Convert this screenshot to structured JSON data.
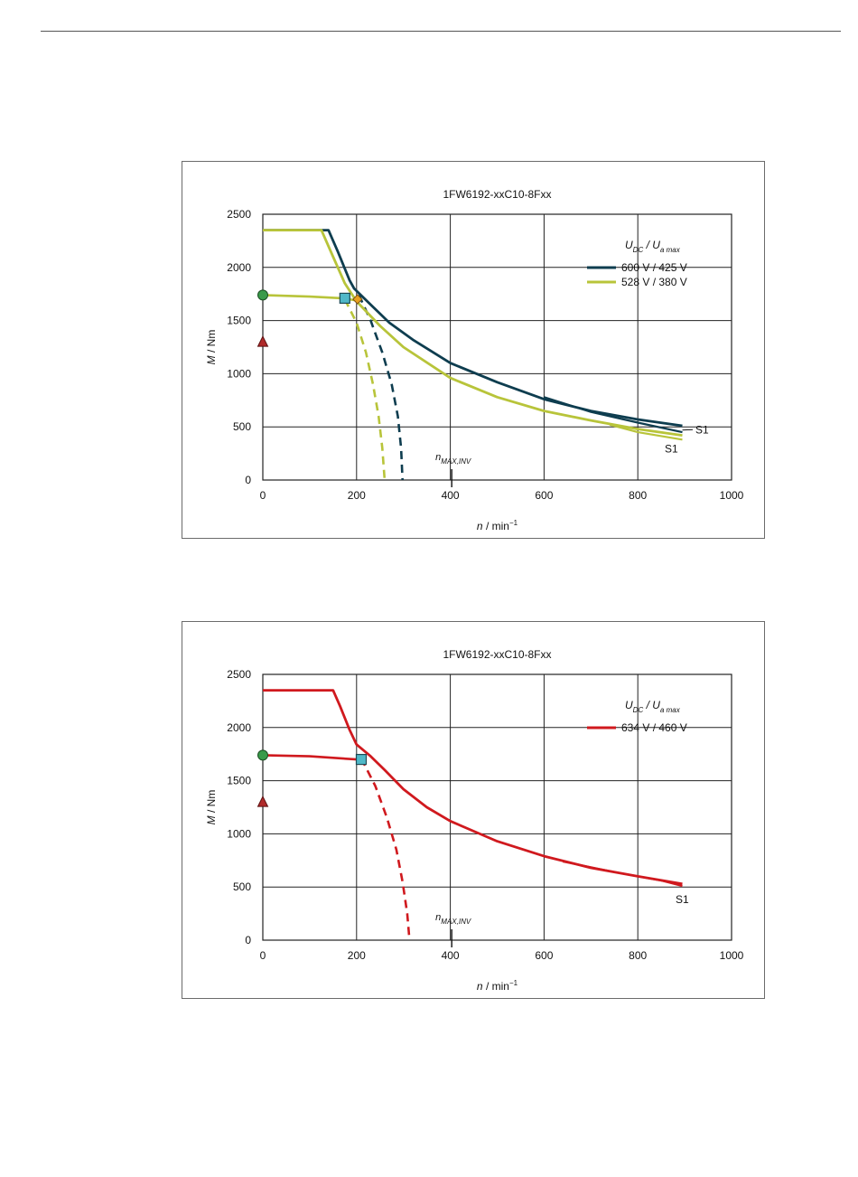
{
  "chart_data": [
    {
      "type": "line",
      "title": "1FW6192-xxC10-8Fxx",
      "xlabel": {
        "var": "n",
        "unit": " / min",
        "sup": "−1"
      },
      "ylabel": {
        "var": "M",
        "unit": " / Nm"
      },
      "xlim": [
        0,
        1000
      ],
      "ylim": [
        0,
        2500
      ],
      "xticks": [
        0,
        200,
        400,
        600,
        800,
        1000
      ],
      "yticks": [
        0,
        500,
        1000,
        1500,
        2000,
        2500
      ],
      "grid": true,
      "legend": {
        "title": {
          "u1": "U",
          "s1": "DC",
          "sep": "/",
          "u2": "U",
          "s2": "a max"
        },
        "placement": "top-right",
        "entries": [
          "600 V / 425 V",
          "528 V / 380 V"
        ]
      },
      "marker_label": {
        "var": "n",
        "sub": "MAX,INV",
        "x": 403
      },
      "end_labels": [
        "S1",
        "S1"
      ],
      "colors": [
        "#0e3d4f",
        "#b8c43a"
      ],
      "series": [
        {
          "name": "600 V / 425 V",
          "solid": [
            [
              0,
              2350
            ],
            [
              130,
              2350
            ],
            [
              140,
              2350
            ],
            [
              160,
              2150
            ],
            [
              185,
              1880
            ],
            [
              195,
              1800
            ],
            [
              230,
              1650
            ],
            [
              270,
              1480
            ],
            [
              320,
              1320
            ],
            [
              400,
              1100
            ],
            [
              500,
              920
            ],
            [
              600,
              760
            ],
            [
              700,
              650
            ],
            [
              800,
              570
            ],
            [
              895,
              510
            ]
          ],
          "dashed": [
            [
              205,
              1740
            ],
            [
              230,
              1500
            ],
            [
              255,
              1200
            ],
            [
              275,
              900
            ],
            [
              288,
              600
            ],
            [
              295,
              300
            ],
            [
              298,
              0
            ]
          ],
          "s1": [
            [
              600,
              780
            ],
            [
              700,
              640
            ],
            [
              800,
              540
            ],
            [
              895,
              450
            ]
          ]
        },
        {
          "name": "528 V / 380 V",
          "solid": [
            [
              0,
              2350
            ],
            [
              125,
              2350
            ],
            [
              150,
              2100
            ],
            [
              175,
              1850
            ],
            [
              200,
              1680
            ],
            [
              250,
              1450
            ],
            [
              300,
              1250
            ],
            [
              400,
              960
            ],
            [
              500,
              780
            ],
            [
              600,
              650
            ],
            [
              700,
              560
            ],
            [
              800,
              480
            ],
            [
              895,
              420
            ]
          ],
          "dashed": [
            [
              175,
              1700
            ],
            [
              200,
              1480
            ],
            [
              220,
              1200
            ],
            [
              235,
              900
            ],
            [
              247,
              600
            ],
            [
              255,
              300
            ],
            [
              260,
              0
            ]
          ],
          "s1": [
            [
              740,
              520
            ],
            [
              800,
              450
            ],
            [
              895,
              380
            ]
          ],
          "continuous": [
            [
              0,
              1740
            ],
            [
              100,
              1725
            ],
            [
              170,
              1710
            ],
            [
              200,
              1690
            ]
          ]
        }
      ],
      "points": [
        {
          "shape": "circle",
          "x": 0,
          "y": 1740,
          "color": "#3a9a4a"
        },
        {
          "shape": "triangle",
          "x": 0,
          "y": 1300,
          "color": "#b02a2a"
        },
        {
          "shape": "square",
          "x": 175,
          "y": 1710,
          "color": "#4fb8c8"
        },
        {
          "shape": "diamond",
          "x": 202,
          "y": 1700,
          "color": "#e8a020"
        }
      ]
    },
    {
      "type": "line",
      "title": "1FW6192-xxC10-8Fxx",
      "xlabel": {
        "var": "n",
        "unit": " / min",
        "sup": "−1"
      },
      "ylabel": {
        "var": "M",
        "unit": " / Nm"
      },
      "xlim": [
        0,
        1000
      ],
      "ylim": [
        0,
        2500
      ],
      "xticks": [
        0,
        200,
        400,
        600,
        800,
        1000
      ],
      "yticks": [
        0,
        500,
        1000,
        1500,
        2000,
        2500
      ],
      "grid": true,
      "legend": {
        "title": {
          "u1": "U",
          "s1": "DC",
          "sep": "/",
          "u2": "U",
          "s2": "a max"
        },
        "placement": "top-right",
        "entries": [
          "634 V / 460 V"
        ]
      },
      "marker_label": {
        "var": "n",
        "sub": "MAX,INV",
        "x": 403
      },
      "end_labels": [
        "S1"
      ],
      "colors": [
        "#d0191e"
      ],
      "series": [
        {
          "name": "634 V / 460 V",
          "solid": [
            [
              0,
              2350
            ],
            [
              150,
              2350
            ],
            [
              165,
              2200
            ],
            [
              185,
              1980
            ],
            [
              200,
              1840
            ],
            [
              230,
              1730
            ],
            [
              260,
              1600
            ],
            [
              300,
              1420
            ],
            [
              350,
              1250
            ],
            [
              400,
              1120
            ],
            [
              500,
              930
            ],
            [
              600,
              790
            ],
            [
              700,
              680
            ],
            [
              800,
              600
            ],
            [
              895,
              530
            ]
          ],
          "dashed": [
            [
              210,
              1710
            ],
            [
              240,
              1450
            ],
            [
              265,
              1150
            ],
            [
              285,
              850
            ],
            [
              298,
              550
            ],
            [
              308,
              250
            ],
            [
              313,
              0
            ]
          ],
          "s1": [
            [
              640,
              740
            ],
            [
              750,
              640
            ],
            [
              850,
              560
            ],
            [
              895,
              510
            ]
          ],
          "continuous": [
            [
              0,
              1740
            ],
            [
              100,
              1730
            ],
            [
              200,
              1700
            ],
            [
              210,
              1695
            ]
          ]
        }
      ],
      "points": [
        {
          "shape": "circle",
          "x": 0,
          "y": 1740,
          "color": "#3a9a4a"
        },
        {
          "shape": "triangle",
          "x": 0,
          "y": 1300,
          "color": "#b02a2a"
        },
        {
          "shape": "square",
          "x": 210,
          "y": 1700,
          "color": "#4fb8c8"
        }
      ]
    }
  ]
}
